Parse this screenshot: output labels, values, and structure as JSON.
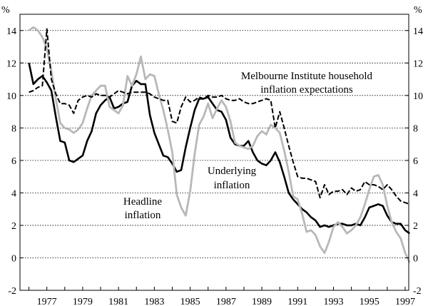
{
  "chart_data": {
    "type": "line",
    "left_unit": "%",
    "right_unit": "%",
    "xlim": [
      1975.5,
      1997.2
    ],
    "ylim": [
      -2,
      15
    ],
    "y_ticks": [
      -2,
      0,
      2,
      4,
      6,
      8,
      10,
      12,
      14
    ],
    "x_ticks": [
      1977,
      1979,
      1981,
      1983,
      1985,
      1987,
      1989,
      1991,
      1993,
      1995,
      1997
    ],
    "grid": "horizontal dotted",
    "annotations": [
      {
        "text": "Melbourne Institute household",
        "series": "expectations"
      },
      {
        "text": "inflation expectations",
        "series": "expectations"
      },
      {
        "text": "Underlying",
        "series": "underlying"
      },
      {
        "text": "inflation",
        "series": "underlying"
      },
      {
        "text": "Headline",
        "series": "headline"
      },
      {
        "text": "inflation",
        "series": "headline"
      }
    ],
    "series": [
      {
        "id": "underlying",
        "style": "solid-black",
        "color": "#000000",
        "points": [
          [
            1976.0,
            12.0
          ],
          [
            1976.25,
            10.7
          ],
          [
            1976.5,
            11.0
          ],
          [
            1976.75,
            11.2
          ],
          [
            1977.0,
            10.8
          ],
          [
            1977.25,
            10.3
          ],
          [
            1977.5,
            8.7
          ],
          [
            1977.75,
            7.2
          ],
          [
            1978.0,
            7.1
          ],
          [
            1978.25,
            6.0
          ],
          [
            1978.5,
            5.9
          ],
          [
            1978.75,
            6.1
          ],
          [
            1979.0,
            6.3
          ],
          [
            1979.25,
            7.2
          ],
          [
            1979.5,
            7.8
          ],
          [
            1979.75,
            8.9
          ],
          [
            1980.0,
            9.4
          ],
          [
            1980.25,
            9.7
          ],
          [
            1980.5,
            9.9
          ],
          [
            1980.75,
            9.2
          ],
          [
            1981.0,
            9.3
          ],
          [
            1981.25,
            9.5
          ],
          [
            1981.5,
            9.6
          ],
          [
            1981.75,
            10.6
          ],
          [
            1982.0,
            10.9
          ],
          [
            1982.25,
            10.7
          ],
          [
            1982.5,
            10.7
          ],
          [
            1982.75,
            8.8
          ],
          [
            1983.0,
            7.7
          ],
          [
            1983.25,
            7.0
          ],
          [
            1983.5,
            6.3
          ],
          [
            1983.75,
            6.2
          ],
          [
            1984.0,
            5.8
          ],
          [
            1984.25,
            5.3
          ],
          [
            1984.5,
            5.4
          ],
          [
            1984.75,
            6.8
          ],
          [
            1985.0,
            8.0
          ],
          [
            1985.25,
            9.1
          ],
          [
            1985.5,
            9.8
          ],
          [
            1985.75,
            9.8
          ],
          [
            1986.0,
            9.9
          ],
          [
            1986.25,
            9.5
          ],
          [
            1986.5,
            9.1
          ],
          [
            1986.75,
            9.0
          ],
          [
            1987.0,
            8.5
          ],
          [
            1987.25,
            7.4
          ],
          [
            1987.5,
            7.0
          ],
          [
            1987.75,
            6.9
          ],
          [
            1988.0,
            6.9
          ],
          [
            1988.25,
            7.2
          ],
          [
            1988.5,
            6.5
          ],
          [
            1988.75,
            6.0
          ],
          [
            1989.0,
            5.8
          ],
          [
            1989.25,
            5.7
          ],
          [
            1989.5,
            6.0
          ],
          [
            1989.75,
            6.5
          ],
          [
            1990.0,
            5.9
          ],
          [
            1990.25,
            5.0
          ],
          [
            1990.5,
            4.0
          ],
          [
            1990.75,
            3.6
          ],
          [
            1991.0,
            3.3
          ],
          [
            1991.25,
            3.0
          ],
          [
            1991.5,
            2.8
          ],
          [
            1991.75,
            2.5
          ],
          [
            1992.0,
            2.3
          ],
          [
            1992.25,
            1.9
          ],
          [
            1992.5,
            2.0
          ],
          [
            1992.75,
            1.9
          ],
          [
            1993.0,
            2.0
          ],
          [
            1993.25,
            2.1
          ],
          [
            1993.5,
            2.1
          ],
          [
            1993.75,
            2.0
          ],
          [
            1994.0,
            2.0
          ],
          [
            1994.25,
            2.1
          ],
          [
            1994.5,
            2.0
          ],
          [
            1994.75,
            2.5
          ],
          [
            1995.0,
            3.1
          ],
          [
            1995.25,
            3.2
          ],
          [
            1995.5,
            3.3
          ],
          [
            1995.75,
            3.2
          ],
          [
            1996.0,
            2.6
          ],
          [
            1996.25,
            2.2
          ],
          [
            1996.5,
            2.1
          ],
          [
            1996.75,
            2.1
          ],
          [
            1997.0,
            1.7
          ],
          [
            1997.25,
            1.5
          ]
        ]
      },
      {
        "id": "headline",
        "style": "solid-grey",
        "color": "#b8b8b8",
        "points": [
          [
            1976.0,
            14.0
          ],
          [
            1976.25,
            14.2
          ],
          [
            1976.5,
            14.0
          ],
          [
            1976.75,
            13.6
          ],
          [
            1977.0,
            12.9
          ],
          [
            1977.25,
            11.5
          ],
          [
            1977.5,
            9.8
          ],
          [
            1977.75,
            8.3
          ],
          [
            1978.0,
            8.0
          ],
          [
            1978.25,
            7.9
          ],
          [
            1978.5,
            7.7
          ],
          [
            1978.75,
            7.9
          ],
          [
            1979.0,
            8.3
          ],
          [
            1979.25,
            9.2
          ],
          [
            1979.5,
            10.0
          ],
          [
            1979.75,
            10.3
          ],
          [
            1980.0,
            10.6
          ],
          [
            1980.25,
            10.6
          ],
          [
            1980.5,
            9.3
          ],
          [
            1980.75,
            9.1
          ],
          [
            1981.0,
            8.9
          ],
          [
            1981.25,
            9.4
          ],
          [
            1981.5,
            11.2
          ],
          [
            1981.75,
            10.6
          ],
          [
            1982.0,
            11.3
          ],
          [
            1982.25,
            12.4
          ],
          [
            1982.5,
            11.0
          ],
          [
            1982.75,
            11.3
          ],
          [
            1983.0,
            11.2
          ],
          [
            1983.25,
            10.1
          ],
          [
            1983.5,
            9.1
          ],
          [
            1983.75,
            7.9
          ],
          [
            1984.0,
            6.5
          ],
          [
            1984.25,
            3.9
          ],
          [
            1984.5,
            3.1
          ],
          [
            1984.75,
            2.6
          ],
          [
            1985.0,
            4.1
          ],
          [
            1985.25,
            6.4
          ],
          [
            1985.5,
            8.2
          ],
          [
            1985.75,
            8.7
          ],
          [
            1986.0,
            9.5
          ],
          [
            1986.25,
            8.6
          ],
          [
            1986.5,
            9.2
          ],
          [
            1986.75,
            9.7
          ],
          [
            1987.0,
            9.3
          ],
          [
            1987.25,
            8.4
          ],
          [
            1987.5,
            7.1
          ],
          [
            1987.75,
            6.9
          ],
          [
            1988.0,
            6.8
          ],
          [
            1988.25,
            6.7
          ],
          [
            1988.5,
            6.9
          ],
          [
            1988.75,
            7.5
          ],
          [
            1989.0,
            7.8
          ],
          [
            1989.25,
            7.6
          ],
          [
            1989.5,
            8.2
          ],
          [
            1989.75,
            8.0
          ],
          [
            1990.0,
            7.7
          ],
          [
            1990.25,
            6.6
          ],
          [
            1990.5,
            5.3
          ],
          [
            1990.75,
            3.8
          ],
          [
            1991.0,
            3.6
          ],
          [
            1991.25,
            2.7
          ],
          [
            1991.5,
            1.6
          ],
          [
            1991.75,
            1.7
          ],
          [
            1992.0,
            1.4
          ],
          [
            1992.25,
            0.7
          ],
          [
            1992.5,
            0.3
          ],
          [
            1992.75,
            1.0
          ],
          [
            1993.0,
            1.9
          ],
          [
            1993.25,
            2.2
          ],
          [
            1993.5,
            1.9
          ],
          [
            1993.75,
            1.5
          ],
          [
            1994.0,
            1.7
          ],
          [
            1994.25,
            2.0
          ],
          [
            1994.5,
            2.5
          ],
          [
            1994.75,
            3.3
          ],
          [
            1995.0,
            4.2
          ],
          [
            1995.25,
            5.0
          ],
          [
            1995.5,
            5.1
          ],
          [
            1995.75,
            4.5
          ],
          [
            1996.0,
            3.2
          ],
          [
            1996.25,
            2.2
          ],
          [
            1996.5,
            1.6
          ],
          [
            1996.75,
            1.2
          ],
          [
            1997.0,
            0.3
          ],
          [
            1997.25,
            -0.3
          ]
        ]
      },
      {
        "id": "expectations",
        "style": "dashed-black",
        "color": "#000000",
        "points": [
          [
            1976.0,
            10.2
          ],
          [
            1976.25,
            10.3
          ],
          [
            1976.5,
            10.5
          ],
          [
            1976.75,
            10.6
          ],
          [
            1977.0,
            14.1
          ],
          [
            1977.25,
            11.0
          ],
          [
            1977.5,
            10.1
          ],
          [
            1977.75,
            9.5
          ],
          [
            1978.0,
            9.5
          ],
          [
            1978.25,
            9.4
          ],
          [
            1978.5,
            8.9
          ],
          [
            1978.75,
            9.7
          ],
          [
            1979.0,
            9.9
          ],
          [
            1979.25,
            10.0
          ],
          [
            1979.5,
            9.9
          ],
          [
            1979.75,
            10.1
          ],
          [
            1980.0,
            10.0
          ],
          [
            1980.25,
            10.0
          ],
          [
            1980.5,
            9.9
          ],
          [
            1980.75,
            10.1
          ],
          [
            1981.0,
            10.3
          ],
          [
            1981.25,
            10.2
          ],
          [
            1981.5,
            10.1
          ],
          [
            1981.75,
            10.2
          ],
          [
            1982.0,
            10.2
          ],
          [
            1982.25,
            10.2
          ],
          [
            1982.5,
            10.2
          ],
          [
            1982.75,
            10.1
          ],
          [
            1983.0,
            9.9
          ],
          [
            1983.25,
            9.8
          ],
          [
            1983.5,
            9.7
          ],
          [
            1983.75,
            9.7
          ],
          [
            1984.0,
            8.4
          ],
          [
            1984.25,
            8.3
          ],
          [
            1984.5,
            9.3
          ],
          [
            1984.75,
            9.9
          ],
          [
            1985.0,
            9.6
          ],
          [
            1985.25,
            9.7
          ],
          [
            1985.5,
            9.9
          ],
          [
            1985.75,
            9.8
          ],
          [
            1986.0,
            10.0
          ],
          [
            1986.25,
            9.9
          ],
          [
            1986.5,
            9.9
          ],
          [
            1986.75,
            10.0
          ],
          [
            1987.0,
            9.8
          ],
          [
            1987.25,
            9.7
          ],
          [
            1987.5,
            9.7
          ],
          [
            1987.75,
            9.8
          ],
          [
            1988.0,
            9.6
          ],
          [
            1988.25,
            9.5
          ],
          [
            1988.5,
            9.5
          ],
          [
            1988.75,
            9.6
          ],
          [
            1989.0,
            9.7
          ],
          [
            1989.25,
            9.8
          ],
          [
            1989.5,
            9.7
          ],
          [
            1989.75,
            8.0
          ],
          [
            1990.0,
            9.0
          ],
          [
            1990.25,
            8.0
          ],
          [
            1990.5,
            6.9
          ],
          [
            1990.75,
            5.9
          ],
          [
            1991.0,
            5.0
          ],
          [
            1991.25,
            4.9
          ],
          [
            1991.5,
            4.9
          ],
          [
            1991.75,
            4.8
          ],
          [
            1992.0,
            4.7
          ],
          [
            1992.25,
            3.7
          ],
          [
            1992.5,
            4.5
          ],
          [
            1992.75,
            3.9
          ],
          [
            1993.0,
            4.1
          ],
          [
            1993.25,
            4.1
          ],
          [
            1993.5,
            4.2
          ],
          [
            1993.75,
            3.9
          ],
          [
            1994.0,
            4.3
          ],
          [
            1994.25,
            4.1
          ],
          [
            1994.5,
            4.2
          ],
          [
            1994.75,
            4.7
          ],
          [
            1995.0,
            4.5
          ],
          [
            1995.25,
            4.5
          ],
          [
            1995.5,
            4.4
          ],
          [
            1995.75,
            4.2
          ],
          [
            1996.0,
            4.5
          ],
          [
            1996.25,
            4.2
          ],
          [
            1996.5,
            3.8
          ],
          [
            1996.75,
            3.5
          ],
          [
            1997.0,
            3.4
          ],
          [
            1997.25,
            3.3
          ]
        ]
      }
    ]
  }
}
